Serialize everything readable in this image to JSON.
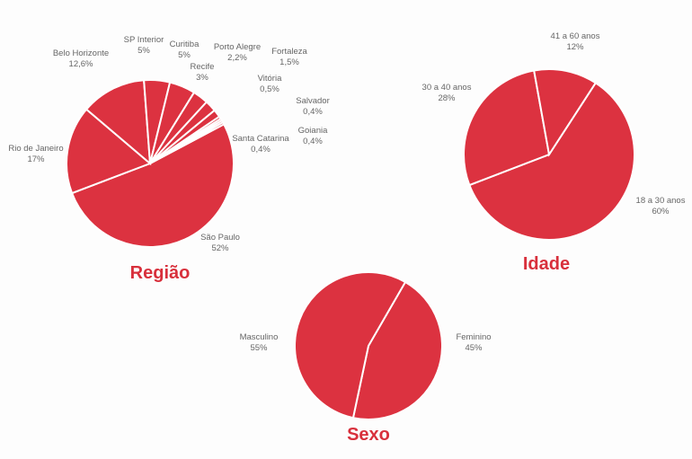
{
  "chart_data": [
    {
      "type": "pie",
      "title": "Região",
      "color": "#dc3240",
      "categories": [
        "São Paulo",
        "Rio de Janeiro",
        "Belo Horizonte",
        "SP Interior",
        "Curitiba",
        "Recife",
        "Porto Alegre",
        "Fortaleza",
        "Vitória",
        "Salvador",
        "Goiania",
        "Santa Catarina"
      ],
      "values": [
        52,
        17,
        12.6,
        5,
        5,
        3,
        2.2,
        1.5,
        0.5,
        0.4,
        0.4,
        0.4
      ],
      "value_labels": [
        "52%",
        "17%",
        "12,6%",
        "5%",
        "5%",
        "3%",
        "2,2%",
        "1,5%",
        "0,5%",
        "0,4%",
        "0,4%",
        "0,4%"
      ]
    },
    {
      "type": "pie",
      "title": "Idade",
      "color": "#dc3240",
      "categories": [
        "18 a 30 anos",
        "30 a 40 anos",
        "41 a 60 anos"
      ],
      "values": [
        60,
        28,
        12
      ],
      "value_labels": [
        "60%",
        "28%",
        "12%"
      ]
    },
    {
      "type": "pie",
      "title": "Sexo",
      "color": "#dc3240",
      "categories": [
        "Feminino",
        "Masculino"
      ],
      "values": [
        45,
        55
      ],
      "value_labels": [
        "45%",
        "55%"
      ]
    }
  ]
}
